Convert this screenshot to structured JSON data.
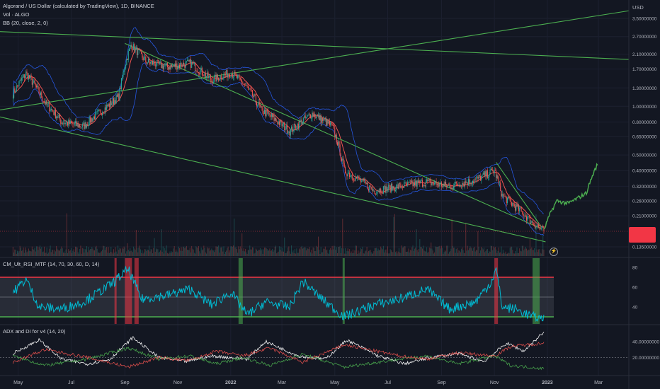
{
  "header": {
    "title": "Algorand / US Dollar (calculated by TradingView), 1D, BINANCE",
    "vol_label": "Vol · ALGO",
    "bb_label": "BB (20, close, 2, 0)",
    "currency": "USD"
  },
  "rsi_pane": {
    "label": "CM_Ult_RSI_MTF (14, 70, 30, 60, D, 14)"
  },
  "adx_pane": {
    "label": "ADX and DI for v4 (14, 20)"
  },
  "colors": {
    "background": "#131722",
    "up": "#26a69a",
    "down": "#ef5350",
    "bb": "#2962ff",
    "trendline": "#4caf50",
    "rsi": "#00bcd4",
    "adx": "#ffffff",
    "di_plus": "#4caf50",
    "di_minus": "#ef5350"
  },
  "chart_data": [
    {
      "type": "line",
      "title": "Algorand / US Dollar (calculated by TradingView), 1D, BINANCE",
      "y_scale": "log",
      "ylabel": "USD",
      "y_ticks": [
        "3.50000000",
        "2.70000000",
        "2.10000000",
        "1.70000000",
        "1.30000000",
        "1.00000000",
        "0.80000000",
        "0.65000000",
        "0.50000000",
        "0.40000000",
        "0.32000000",
        "0.26000000",
        "0.21000000",
        "0.13500000"
      ],
      "x_ticks": [
        "May",
        "Jul",
        "Sep",
        "Nov",
        "2022",
        "Mar",
        "May",
        "Jul",
        "Sep",
        "Nov",
        "2023",
        "Mar"
      ],
      "series": [
        {
          "values": [
            {
              "x": "2021-04-25",
              "y": 1.2
            },
            {
              "x": "2021-05-10",
              "y": 1.6
            },
            {
              "x": "2021-06-01",
              "y": 1.05
            },
            {
              "x": "2021-06-20",
              "y": 0.8
            },
            {
              "x": "2021-07-15",
              "y": 0.75
            },
            {
              "x": "2021-08-10",
              "y": 0.98
            },
            {
              "x": "2021-08-25",
              "y": 1.15
            },
            {
              "x": "2021-09-08",
              "y": 2.4
            },
            {
              "x": "2021-09-25",
              "y": 1.9
            },
            {
              "x": "2021-10-20",
              "y": 1.75
            },
            {
              "x": "2021-11-15",
              "y": 1.85
            },
            {
              "x": "2021-12-10",
              "y": 1.45
            },
            {
              "x": "2022-01-01",
              "y": 1.62
            },
            {
              "x": "2022-01-20",
              "y": 1.3
            },
            {
              "x": "2022-02-05",
              "y": 0.95
            },
            {
              "x": "2022-03-10",
              "y": 0.7
            },
            {
              "x": "2022-04-05",
              "y": 0.9
            },
            {
              "x": "2022-04-28",
              "y": 0.75
            },
            {
              "x": "2022-05-12",
              "y": 0.4
            },
            {
              "x": "2022-06-15",
              "y": 0.3
            },
            {
              "x": "2022-07-15",
              "y": 0.32
            },
            {
              "x": "2022-08-15",
              "y": 0.34
            },
            {
              "x": "2022-09-10",
              "y": 0.32
            },
            {
              "x": "2022-10-10",
              "y": 0.35
            },
            {
              "x": "2022-11-01",
              "y": 0.4
            },
            {
              "x": "2022-11-10",
              "y": 0.28
            },
            {
              "x": "2022-11-25",
              "y": 0.24
            },
            {
              "x": "2022-12-15",
              "y": 0.19
            },
            {
              "x": "2022-12-28",
              "y": 0.17
            }
          ]
        },
        {
          "values": [
            {
              "x": "2022-12-28",
              "y": 0.17
            },
            {
              "x": "2023-01-05",
              "y": 0.22
            },
            {
              "x": "2023-01-12",
              "y": 0.26
            },
            {
              "x": "2023-01-25",
              "y": 0.25
            },
            {
              "x": "2023-02-05",
              "y": 0.27
            },
            {
              "x": "2023-02-15",
              "y": 0.29
            },
            {
              "x": "2023-02-28",
              "y": 0.44
            }
          ]
        }
      ]
    },
    {
      "type": "line",
      "title": "CM_Ult_RSI_MTF (14, 70, 30, 60, D, 14)",
      "y_ticks": [
        "80",
        "60",
        "40"
      ],
      "ylim": [
        25,
        85
      ],
      "overbought": 70,
      "oversold": 30,
      "midline": 50,
      "series": [
        {
          "values": [
            {
              "x": "2021-04-25",
              "y": 55
            },
            {
              "x": "2021-05-10",
              "y": 68
            },
            {
              "x": "2021-05-25",
              "y": 40
            },
            {
              "x": "2021-06-20",
              "y": 38
            },
            {
              "x": "2021-07-15",
              "y": 45
            },
            {
              "x": "2021-08-15",
              "y": 62
            },
            {
              "x": "2021-09-05",
              "y": 78
            },
            {
              "x": "2021-09-20",
              "y": 48
            },
            {
              "x": "2021-10-20",
              "y": 52
            },
            {
              "x": "2021-11-15",
              "y": 58
            },
            {
              "x": "2021-12-10",
              "y": 42
            },
            {
              "x": "2022-01-01",
              "y": 55
            },
            {
              "x": "2022-01-20",
              "y": 32
            },
            {
              "x": "2022-02-10",
              "y": 45
            },
            {
              "x": "2022-03-10",
              "y": 40
            },
            {
              "x": "2022-03-25",
              "y": 66
            },
            {
              "x": "2022-04-20",
              "y": 45
            },
            {
              "x": "2022-05-12",
              "y": 30
            },
            {
              "x": "2022-06-15",
              "y": 42
            },
            {
              "x": "2022-07-15",
              "y": 48
            },
            {
              "x": "2022-08-15",
              "y": 58
            },
            {
              "x": "2022-09-10",
              "y": 38
            },
            {
              "x": "2022-10-10",
              "y": 45
            },
            {
              "x": "2022-10-28",
              "y": 65
            },
            {
              "x": "2022-11-03",
              "y": 78
            },
            {
              "x": "2022-11-10",
              "y": 40
            },
            {
              "x": "2022-11-25",
              "y": 38
            },
            {
              "x": "2022-12-15",
              "y": 30
            },
            {
              "x": "2022-12-28",
              "y": 28
            }
          ]
        }
      ]
    },
    {
      "type": "line",
      "title": "ADX and DI for v4 (14, 20)",
      "y_ticks": [
        "40.00000000",
        "20.00000000"
      ],
      "ylim": [
        0,
        55
      ],
      "series": [
        {
          "values": [
            {
              "x": "2021-04-25",
              "y": 25
            },
            {
              "x": "2021-05-25",
              "y": 42
            },
            {
              "x": "2021-06-20",
              "y": 18
            },
            {
              "x": "2021-07-20",
              "y": 12
            },
            {
              "x": "2021-08-15",
              "y": 18
            },
            {
              "x": "2021-09-10",
              "y": 45
            },
            {
              "x": "2021-10-10",
              "y": 20
            },
            {
              "x": "2021-11-10",
              "y": 15
            },
            {
              "x": "2021-12-10",
              "y": 22
            },
            {
              "x": "2022-01-20",
              "y": 18
            },
            {
              "x": "2022-02-10",
              "y": 40
            },
            {
              "x": "2022-03-20",
              "y": 22
            },
            {
              "x": "2022-04-20",
              "y": 18
            },
            {
              "x": "2022-05-15",
              "y": 42
            },
            {
              "x": "2022-06-20",
              "y": 22
            },
            {
              "x": "2022-07-20",
              "y": 12
            },
            {
              "x": "2022-08-20",
              "y": 20
            },
            {
              "x": "2022-09-20",
              "y": 25
            },
            {
              "x": "2022-10-20",
              "y": 15
            },
            {
              "x": "2022-11-15",
              "y": 38
            },
            {
              "x": "2022-12-05",
              "y": 28
            },
            {
              "x": "2022-12-28",
              "y": 52
            }
          ]
        },
        {
          "values": [
            {
              "x": "2021-04-25",
              "y": 22
            },
            {
              "x": "2021-06-01",
              "y": 10
            },
            {
              "x": "2021-07-20",
              "y": 18
            },
            {
              "x": "2021-09-05",
              "y": 32
            },
            {
              "x": "2021-10-10",
              "y": 18
            },
            {
              "x": "2021-11-15",
              "y": 22
            },
            {
              "x": "2021-12-15",
              "y": 12
            },
            {
              "x": "2022-01-15",
              "y": 20
            },
            {
              "x": "2022-02-15",
              "y": 10
            },
            {
              "x": "2022-03-25",
              "y": 24
            },
            {
              "x": "2022-05-12",
              "y": 8
            },
            {
              "x": "2022-07-15",
              "y": 18
            },
            {
              "x": "2022-08-15",
              "y": 22
            },
            {
              "x": "2022-09-20",
              "y": 12
            },
            {
              "x": "2022-11-01",
              "y": 22
            },
            {
              "x": "2022-11-20",
              "y": 10
            },
            {
              "x": "2022-12-28",
              "y": 6
            }
          ]
        },
        {
          "values": [
            {
              "x": "2021-04-25",
              "y": 14
            },
            {
              "x": "2021-06-01",
              "y": 30
            },
            {
              "x": "2021-07-20",
              "y": 20
            },
            {
              "x": "2021-09-05",
              "y": 8
            },
            {
              "x": "2021-10-10",
              "y": 20
            },
            {
              "x": "2021-11-15",
              "y": 16
            },
            {
              "x": "2021-12-15",
              "y": 28
            },
            {
              "x": "2022-01-15",
              "y": 22
            },
            {
              "x": "2022-02-15",
              "y": 32
            },
            {
              "x": "2022-03-25",
              "y": 14
            },
            {
              "x": "2022-05-12",
              "y": 36
            },
            {
              "x": "2022-07-15",
              "y": 22
            },
            {
              "x": "2022-08-15",
              "y": 18
            },
            {
              "x": "2022-09-20",
              "y": 26
            },
            {
              "x": "2022-11-01",
              "y": 22
            },
            {
              "x": "2022-11-20",
              "y": 34
            },
            {
              "x": "2022-12-28",
              "y": 38
            }
          ]
        }
      ]
    }
  ]
}
